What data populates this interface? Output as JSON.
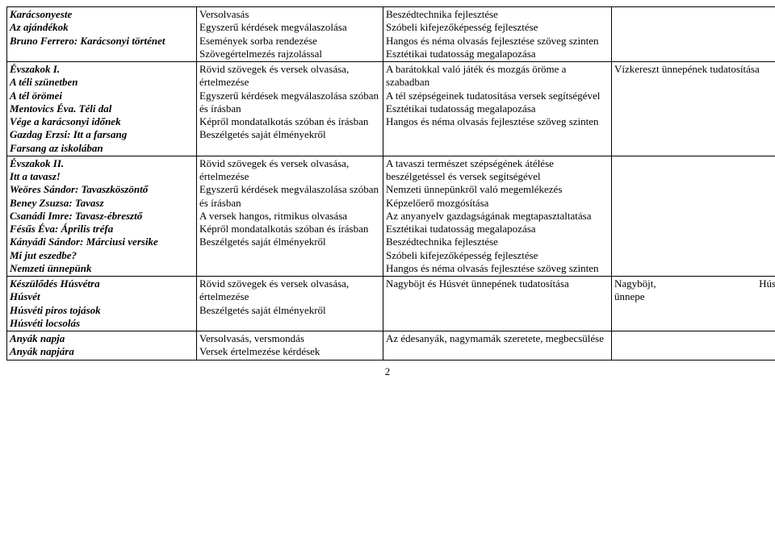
{
  "rows": [
    {
      "c1": [
        {
          "t": "Karácsonyeste",
          "cls": "bi"
        },
        {
          "t": "Az ajándékok",
          "cls": "bi"
        },
        {
          "t": "Bruno Ferrero: Karácsonyi történet",
          "cls": "bi"
        }
      ],
      "c2": [
        {
          "t": "Versolvasás"
        },
        {
          "t": "Egyszerű kérdések megválaszolása"
        },
        {
          "t": "Események sorba rendezése"
        },
        {
          "t": "Szövegértelmezés rajzolással"
        }
      ],
      "c3": [
        {
          "t": "Beszédtechnika fejlesztése"
        },
        {
          "t": "Szóbeli kifejezőképesség fejlesztése"
        },
        {
          "t": "Hangos és néma olvasás fejlesztése szöveg szinten"
        },
        {
          "t": "Esztétikai tudatosság megalapozása"
        }
      ],
      "c4": []
    },
    {
      "c1": [
        {
          "t": "Évszakok I.",
          "cls": "bi"
        },
        {
          "t": "A téli szünetben",
          "cls": "bi"
        },
        {
          "t": "A tél örömei",
          "cls": "bi"
        },
        {
          "t": "Mentovics Éva. Téli dal",
          "cls": "bi"
        },
        {
          "t": "Vége a karácsonyi időnek",
          "cls": "bi"
        },
        {
          "t": "Gazdag Erzsi: Itt a farsang",
          "cls": "bi"
        },
        {
          "t": "Farsang az iskolában",
          "cls": "bi"
        }
      ],
      "c2": [
        {
          "t": "Rövid szövegek és versek olvasása, értelmezése"
        },
        {
          "t": "Egyszerű kérdések megválaszolása szóban és írásban"
        },
        {
          "t": "Képről mondatalkotás szóban és írásban"
        },
        {
          "t": "Beszélgetés saját élményekről"
        }
      ],
      "c3": [
        {
          "t": "A barátokkal való játék és  mozgás öröme a szabadban"
        },
        {
          "t": "A tél szépségeinek tudatosítása versek segítségével"
        },
        {
          "t": "Esztétikai tudatosság megalapozása"
        },
        {
          "t": "Hangos és néma olvasás fejlesztése szöveg szinten"
        }
      ],
      "c4": [
        {
          "t": "Vízkereszt ünnepének tudatosítása"
        }
      ]
    },
    {
      "c1": [
        {
          "t": "Évszakok II.",
          "cls": "bi"
        },
        {
          "t": "Itt a tavasz!",
          "cls": "bi"
        },
        {
          "t": "Weöres Sándor: Tavaszköszöntő",
          "cls": "bi"
        },
        {
          "t": "Beney Zsuzsa: Tavasz",
          "cls": "bi"
        },
        {
          "t": "Csanádi Imre: Tavasz-ébresztő",
          "cls": "bi"
        },
        {
          "t": "Fésűs Éva: Április tréfa",
          "cls": "bi"
        },
        {
          "t": "Kányádi Sándor: Márciusi versike",
          "cls": "bi"
        },
        {
          "t": "Mi jut eszedbe?",
          "cls": "bi"
        },
        {
          "t": "Nemzeti ünnepünk",
          "cls": "bi"
        }
      ],
      "c2": [
        {
          "t": "Rövid szövegek és versek olvasása, értelmezése"
        },
        {
          "t": "Egyszerű kérdések megválaszolása szóban és írásban"
        },
        {
          "t": "A versek hangos, ritmikus olvasása"
        },
        {
          "t": "Képről mondatalkotás szóban és írásban"
        },
        {
          "t": "Beszélgetés saját élményekről"
        }
      ],
      "c3": [
        {
          "t": "A tavaszi természet szépségének átélése beszélgetéssel és versek segítségével"
        },
        {
          "t": "Nemzeti ünnepünkről való megemlékezés"
        },
        {
          "t": "Képzelőerő mozgósítása"
        },
        {
          "t": "Az anyanyelv gazdagságának megtapasztaltatása"
        },
        {
          "t": "Esztétikai tudatosság megalapozása"
        },
        {
          "t": "Beszédtechnika fejlesztése"
        },
        {
          "t": "Szóbeli kifejezőképesség fejlesztése"
        },
        {
          "t": "Hangos és néma olvasás fejlesztése szöveg szinten"
        }
      ],
      "c4": []
    },
    {
      "c1": [
        {
          "t": "Készülődés Húsvétra",
          "cls": "bi"
        },
        {
          "t": "Húsvét",
          "cls": "bi"
        },
        {
          "t": "Húsvéti piros tojások",
          "cls": "bi"
        },
        {
          "t": "Húsvéti locsolás",
          "cls": "bi"
        }
      ],
      "c2": [
        {
          "t": "Rövid szövegek és versek olvasása, értelmezése"
        },
        {
          "t": "Beszélgetés saját élményekről"
        }
      ],
      "c3": [
        {
          "t": "Nagyböjt és Húsvét ünnepének tudatosítása"
        }
      ],
      "c4": [
        {
          "justify": true,
          "l": "Nagyböjt,",
          "r": "Húsvét"
        },
        {
          "t": "ünnepe"
        }
      ]
    },
    {
      "c1": [
        {
          "t": "Anyák napja",
          "cls": "bi"
        },
        {
          "t": "Anyák napjára",
          "cls": "bi"
        }
      ],
      "c2": [
        {
          "t": "Versolvasás, versmondás"
        },
        {
          "t": "Versek értelmezése kérdések"
        }
      ],
      "c3": [
        {
          "t": "Az édesanyák, nagymamák szeretete, megbecsülése"
        }
      ],
      "c4": []
    }
  ],
  "page_number": "2"
}
